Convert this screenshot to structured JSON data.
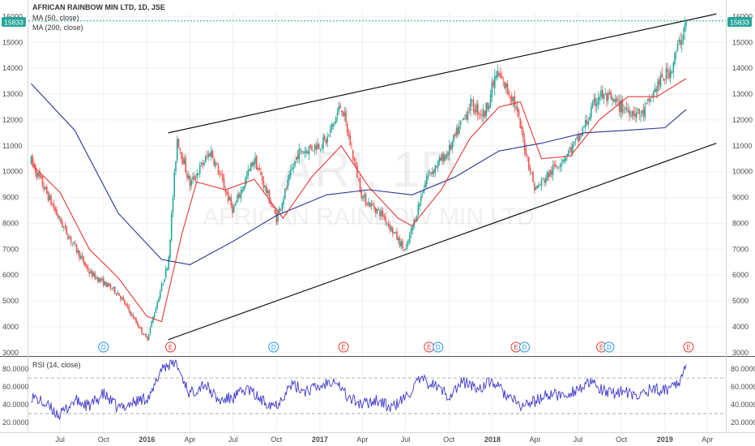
{
  "symbol": {
    "title": "AFRICAN RAINBOW MIN LTD, 1D, JSE",
    "watermark_ticker": "ARI, 1D",
    "watermark_name": "AFRICAN RAINBOW MIN LTD"
  },
  "price_label": "15833",
  "colors": {
    "up": "#26a69a",
    "down": "#ef5350",
    "ma50": "#e53935",
    "ma200": "#283593",
    "rsi": "#3f37c9",
    "trend": "#000000",
    "price_line": "#26a69a"
  },
  "chart_data": [
    {
      "type": "candlestick",
      "legend": [
        "MA (50, close)",
        "MA (200, close)"
      ],
      "x_ticks": [
        "Jul",
        "Oct",
        "2016",
        "Apr",
        "Jul",
        "Oct",
        "2017",
        "Apr",
        "Jul",
        "Oct",
        "2018",
        "Apr",
        "Jul",
        "Oct",
        "2019",
        "Apr"
      ],
      "y_ticks": [
        3000,
        4000,
        5000,
        6000,
        7000,
        8000,
        9000,
        10000,
        11000,
        12000,
        13000,
        14000,
        15000,
        16000
      ],
      "ylim": [
        2900,
        16200
      ],
      "price_anchors": [
        [
          "2015-05-01",
          10400
        ],
        [
          "2015-07-01",
          8100
        ],
        [
          "2015-09-01",
          6100
        ],
        [
          "2015-11-01",
          5300
        ],
        [
          "2016-01-01",
          3500
        ],
        [
          "2016-02-15",
          6500
        ],
        [
          "2016-03-05",
          11300
        ],
        [
          "2016-04-01",
          9500
        ],
        [
          "2016-05-15",
          10800
        ],
        [
          "2016-07-01",
          8500
        ],
        [
          "2016-08-15",
          10500
        ],
        [
          "2016-10-01",
          8200
        ],
        [
          "2016-11-15",
          10700
        ],
        [
          "2017-01-15",
          11200
        ],
        [
          "2017-02-15",
          12600
        ],
        [
          "2017-04-01",
          9000
        ],
        [
          "2017-05-15",
          8300
        ],
        [
          "2017-07-01",
          6900
        ],
        [
          "2017-08-15",
          9800
        ],
        [
          "2017-10-01",
          10800
        ],
        [
          "2017-11-15",
          12600
        ],
        [
          "2017-12-15",
          12200
        ],
        [
          "2018-01-10",
          13800
        ],
        [
          "2018-02-15",
          12800
        ],
        [
          "2018-04-01",
          9300
        ],
        [
          "2018-05-15",
          10200
        ],
        [
          "2018-07-01",
          11200
        ],
        [
          "2018-08-15",
          13000
        ],
        [
          "2018-10-01",
          12500
        ],
        [
          "2018-11-15",
          12200
        ],
        [
          "2018-12-15",
          13300
        ],
        [
          "2019-01-15",
          14000
        ],
        [
          "2019-02-15",
          15800
        ]
      ],
      "ma50_points": [
        [
          "2015-05-01",
          10300
        ],
        [
          "2015-07-01",
          9200
        ],
        [
          "2015-09-01",
          7000
        ],
        [
          "2015-11-01",
          5900
        ],
        [
          "2016-01-01",
          4400
        ],
        [
          "2016-02-01",
          4200
        ],
        [
          "2016-03-15",
          7600
        ],
        [
          "2016-04-15",
          9600
        ],
        [
          "2016-06-15",
          9300
        ],
        [
          "2016-08-15",
          9700
        ],
        [
          "2016-10-15",
          8200
        ],
        [
          "2016-12-15",
          9800
        ],
        [
          "2017-02-15",
          11000
        ],
        [
          "2017-04-15",
          9400
        ],
        [
          "2017-06-15",
          8200
        ],
        [
          "2017-07-15",
          7900
        ],
        [
          "2017-09-15",
          9300
        ],
        [
          "2017-11-15",
          11300
        ],
        [
          "2018-01-15",
          12500
        ],
        [
          "2018-03-01",
          12700
        ],
        [
          "2018-04-15",
          10500
        ],
        [
          "2018-06-15",
          10600
        ],
        [
          "2018-08-15",
          12000
        ],
        [
          "2018-10-15",
          12900
        ],
        [
          "2018-12-15",
          12900
        ],
        [
          "2019-02-15",
          13600
        ]
      ],
      "ma200_points": [
        [
          "2015-05-01",
          13400
        ],
        [
          "2015-08-01",
          11600
        ],
        [
          "2015-11-01",
          8400
        ],
        [
          "2016-02-01",
          6600
        ],
        [
          "2016-04-01",
          6400
        ],
        [
          "2016-07-01",
          7300
        ],
        [
          "2016-10-01",
          8300
        ],
        [
          "2017-01-15",
          9100
        ],
        [
          "2017-04-15",
          9300
        ],
        [
          "2017-07-15",
          9100
        ],
        [
          "2017-10-15",
          9800
        ],
        [
          "2018-01-15",
          10800
        ],
        [
          "2018-04-15",
          11100
        ],
        [
          "2018-07-15",
          11500
        ],
        [
          "2018-10-15",
          11600
        ],
        [
          "2019-01-01",
          11700
        ],
        [
          "2019-02-15",
          12400
        ]
      ],
      "trend_lines": [
        [
          [
            "2016-02-15",
            11500
          ],
          [
            "2019-04-20",
            16100
          ]
        ],
        [
          [
            "2016-02-15",
            3500
          ],
          [
            "2019-04-20",
            11100
          ]
        ]
      ],
      "events": [
        {
          "label": "D",
          "date": "2015-10-01"
        },
        {
          "label": "E",
          "date": "2016-02-20"
        },
        {
          "label": "D",
          "date": "2016-09-25"
        },
        {
          "label": "E",
          "date": "2017-02-20"
        },
        {
          "label": "E",
          "date": "2017-08-20"
        },
        {
          "label": "D",
          "date": "2017-09-08"
        },
        {
          "label": "E",
          "date": "2018-02-20"
        },
        {
          "label": "D",
          "date": "2018-03-10"
        },
        {
          "label": "E",
          "date": "2018-08-20"
        },
        {
          "label": "D",
          "date": "2018-09-05"
        },
        {
          "label": "E",
          "date": "2019-02-20"
        }
      ]
    },
    {
      "type": "line",
      "legend": [
        "RSI (14, close)"
      ],
      "y_ticks": [
        20,
        40,
        60,
        80
      ],
      "y_tick_labels": [
        "20.0000",
        "40.0000",
        "60.0000",
        "80.0000"
      ],
      "ylim": [
        10,
        92
      ],
      "bands": [
        30,
        70
      ],
      "rsi_anchors": [
        [
          "2015-05-01",
          50
        ],
        [
          "2015-06-01",
          40
        ],
        [
          "2015-07-01",
          28
        ],
        [
          "2015-08-01",
          45
        ],
        [
          "2015-09-01",
          38
        ],
        [
          "2015-10-01",
          52
        ],
        [
          "2015-11-01",
          36
        ],
        [
          "2015-12-01",
          42
        ],
        [
          "2016-01-10",
          50
        ],
        [
          "2016-02-01",
          82
        ],
        [
          "2016-03-01",
          88
        ],
        [
          "2016-04-01",
          52
        ],
        [
          "2016-05-01",
          64
        ],
        [
          "2016-06-01",
          44
        ],
        [
          "2016-07-01",
          48
        ],
        [
          "2016-08-01",
          58
        ],
        [
          "2016-09-01",
          44
        ],
        [
          "2016-10-01",
          40
        ],
        [
          "2016-11-01",
          62
        ],
        [
          "2016-12-01",
          56
        ],
        [
          "2017-01-01",
          60
        ],
        [
          "2017-02-01",
          70
        ],
        [
          "2017-03-01",
          48
        ],
        [
          "2017-04-01",
          40
        ],
        [
          "2017-05-01",
          46
        ],
        [
          "2017-06-01",
          36
        ],
        [
          "2017-07-01",
          48
        ],
        [
          "2017-08-01",
          68
        ],
        [
          "2017-09-01",
          62
        ],
        [
          "2017-10-01",
          50
        ],
        [
          "2017-11-01",
          66
        ],
        [
          "2017-12-01",
          58
        ],
        [
          "2018-01-01",
          66
        ],
        [
          "2018-02-01",
          50
        ],
        [
          "2018-03-01",
          38
        ],
        [
          "2018-04-01",
          44
        ],
        [
          "2018-05-01",
          52
        ],
        [
          "2018-06-01",
          50
        ],
        [
          "2018-07-01",
          58
        ],
        [
          "2018-08-01",
          64
        ],
        [
          "2018-09-01",
          52
        ],
        [
          "2018-10-01",
          56
        ],
        [
          "2018-11-01",
          48
        ],
        [
          "2018-12-01",
          58
        ],
        [
          "2019-01-01",
          56
        ],
        [
          "2019-02-01",
          68
        ],
        [
          "2019-02-15",
          80
        ]
      ]
    }
  ]
}
